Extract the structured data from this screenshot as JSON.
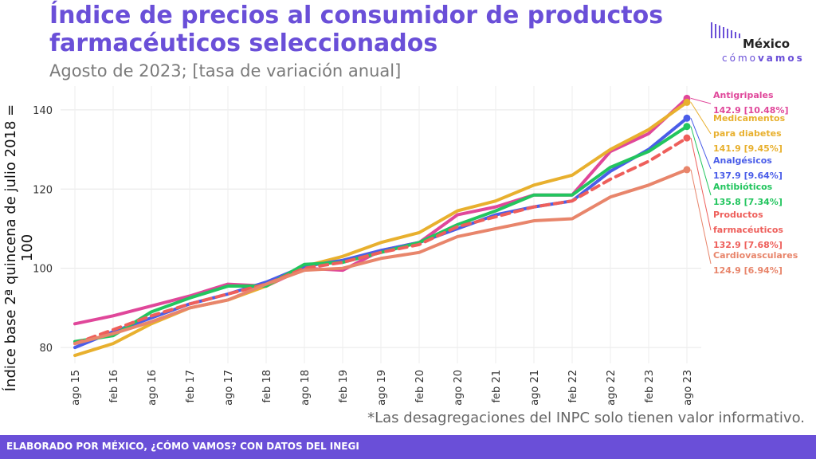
{
  "header": {
    "title": "Índice de precios al consumidor de productos farmacéuticos seleccionados",
    "subtitle": "Agosto de 2023; [tasa de variación anual]"
  },
  "logo": {
    "line1": "México",
    "line2a": "cómo",
    "line2b": "vamos"
  },
  "note": "*Las desagregaciones del INPC solo tienen valor informativo.",
  "footer": "ELABORADO POR MÉXICO, ¿CÓMO VAMOS? CON DATOS DEL INEGI",
  "chart_data": {
    "type": "line",
    "ylabel": "Índice base 2ª quincena de julio 2018 = 100",
    "xlabel": "",
    "ylim": [
      76,
      146
    ],
    "yticks": [
      80,
      100,
      120,
      140
    ],
    "x_tick_labels": [
      "ago 15",
      "feb 16",
      "ago 16",
      "feb 17",
      "ago 17",
      "feb 18",
      "ago 18",
      "feb 19",
      "ago 19",
      "feb 20",
      "ago 20",
      "feb 21",
      "ago 21",
      "feb 22",
      "ago 22",
      "feb 23",
      "ago 23"
    ],
    "x": [
      "ago 15",
      "feb 16",
      "ago 16",
      "feb 17",
      "ago 17",
      "feb 18",
      "ago 18",
      "feb 19",
      "ago 19",
      "feb 20",
      "ago 20",
      "feb 21",
      "ago 21",
      "feb 22",
      "ago 22",
      "feb 23",
      "ago 23"
    ],
    "grid": true,
    "series": [
      {
        "name": "Antigripales",
        "color": "#e0479a",
        "dashed": false,
        "values": [
          86,
          88,
          90.5,
          93,
          96,
          95.5,
          100,
          99.5,
          104.5,
          106.5,
          113.5,
          115.5,
          118.5,
          118.5,
          129.5,
          134,
          142.9
        ],
        "label": "Antigripales",
        "value_label": "142.9 [10.48%]"
      },
      {
        "name": "Medicamentos para diabetes",
        "color": "#e8b02e",
        "dashed": false,
        "values": [
          78,
          81,
          86,
          90,
          92,
          95.5,
          100.5,
          103,
          106.5,
          109,
          114.5,
          117,
          121,
          123.5,
          130,
          135,
          141.9
        ],
        "label": "Medicamentos para diabetes",
        "value_label": "141.9 [9.45%]"
      },
      {
        "name": "Analgésicos",
        "color": "#4a5de8",
        "dashed": false,
        "values": [
          80,
          84,
          87.5,
          91,
          93.5,
          96.5,
          100.5,
          102,
          104.5,
          106.5,
          110,
          113.5,
          115.5,
          117,
          124.5,
          130,
          137.9
        ],
        "label": "Analgésicos",
        "value_label": "137.9 [9.64%]"
      },
      {
        "name": "Antibióticos",
        "color": "#22c55e",
        "dashed": false,
        "values": [
          81.5,
          83,
          89,
          92.5,
          95.5,
          95.5,
          101,
          101.5,
          104,
          106.5,
          111,
          114.5,
          118.5,
          118.5,
          125.5,
          129.5,
          135.8
        ],
        "label": "Antibióticos",
        "value_label": "135.8 [7.34%]"
      },
      {
        "name": "Productos farmacéuticos",
        "color": "#ee5f5b",
        "dashed": true,
        "values": [
          81,
          84.5,
          88,
          91,
          93.5,
          96,
          100,
          101.5,
          104,
          106,
          110.5,
          113,
          115.5,
          117,
          122.5,
          127,
          132.9
        ],
        "label": "Productos farmacéuticos",
        "value_label": "132.9 [7.68%]"
      },
      {
        "name": "Cardiovasculares",
        "color": "#e8856b",
        "dashed": false,
        "values": [
          81,
          83.5,
          86.5,
          90,
          92,
          96,
          99.5,
          100,
          102.5,
          104,
          108,
          110,
          112,
          112.5,
          118,
          121,
          124.9
        ],
        "label": "Cardiovasculares",
        "value_label": "124.9 [6.94%]"
      }
    ]
  }
}
